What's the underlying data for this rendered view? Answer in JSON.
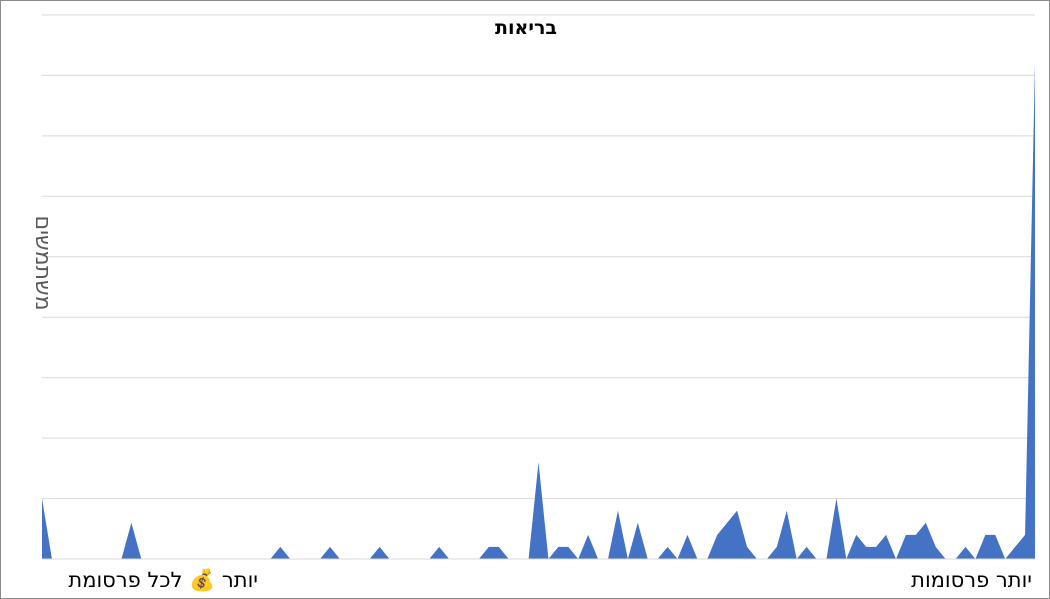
{
  "chart_data": {
    "type": "area",
    "title": "בריאות",
    "ylabel": "משתמשים",
    "x_start_label": "יותר פרסומות",
    "x_end_label": "יותר 💰 לכל פרסומת",
    "x_direction": "right-to-left",
    "grid": true,
    "legend": "none",
    "series": [
      {
        "color": "#4472c4",
        "values": [
          5,
          0,
          0,
          0,
          0,
          0,
          0,
          0,
          0,
          3,
          0,
          0,
          0,
          0,
          0,
          0,
          0,
          0,
          0,
          0,
          0,
          0,
          0,
          0,
          1,
          0,
          0,
          0,
          0,
          1,
          0,
          0,
          0,
          0,
          1,
          0,
          0,
          0,
          0,
          0,
          1,
          0,
          0,
          0,
          0,
          1,
          1,
          0,
          0,
          0,
          8,
          0,
          1,
          1,
          0,
          2,
          0,
          0,
          4,
          0,
          3,
          0,
          0,
          1,
          0,
          2,
          0,
          0,
          2,
          3,
          4,
          1,
          0,
          0,
          1,
          4,
          0,
          1,
          0,
          0,
          5,
          0,
          2,
          1,
          1,
          2,
          0,
          2,
          2,
          3,
          1,
          0,
          0,
          1,
          0,
          2,
          2,
          0,
          1,
          2,
          41
        ]
      }
    ]
  }
}
